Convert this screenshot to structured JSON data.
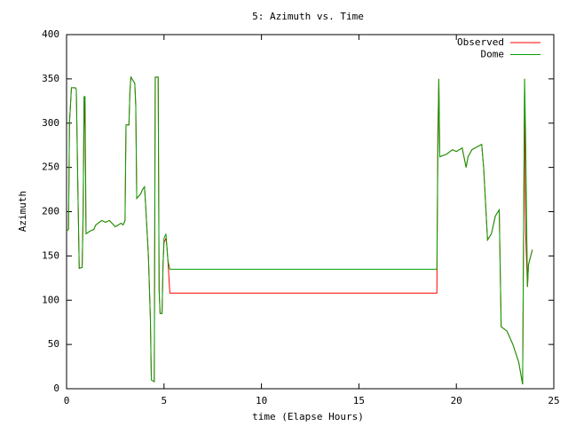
{
  "chart_data": {
    "type": "line",
    "title": "5: Azimuth vs. Time",
    "x_label": "time (Elapse Hours)",
    "y_label": "Azimuth",
    "x": [
      0,
      0.1,
      0.15,
      0.25,
      0.45,
      0.5,
      0.6,
      0.65,
      0.8,
      0.85,
      0.9,
      0.95,
      1.0,
      1.2,
      1.4,
      1.5,
      1.8,
      2.0,
      2.2,
      2.5,
      2.8,
      2.9,
      3.0,
      3.05,
      3.2,
      3.25,
      3.3,
      3.5,
      3.55,
      3.6,
      3.8,
      3.9,
      4.0,
      4.05,
      4.2,
      4.3,
      4.35,
      4.5,
      4.55,
      4.7,
      4.75,
      4.8,
      4.9,
      4.95,
      5.0,
      5.1,
      5.15,
      5.2,
      5.3,
      19.0,
      19.05,
      19.1,
      19.15,
      19.5,
      19.8,
      20.0,
      20.3,
      20.5,
      20.6,
      20.8,
      21.3,
      21.4,
      21.6,
      21.8,
      22.0,
      22.2,
      22.3,
      22.6,
      22.9,
      23.2,
      23.4,
      23.5,
      23.55,
      23.65,
      23.7,
      23.9
    ],
    "series": [
      {
        "name": "Observed",
        "color": "#ff0000",
        "values": [
          178,
          180,
          300,
          340,
          340,
          338,
          200,
          136,
          137,
          200,
          330,
          290,
          175,
          178,
          180,
          185,
          190,
          188,
          190,
          183,
          187,
          185,
          190,
          298,
          298,
          335,
          352,
          345,
          320,
          215,
          220,
          225,
          228,
          210,
          150,
          80,
          10,
          8,
          352,
          352,
          110,
          85,
          85,
          140,
          165,
          170,
          160,
          145,
          108,
          108,
          290,
          350,
          262,
          265,
          270,
          268,
          272,
          250,
          262,
          270,
          276,
          250,
          168,
          175,
          195,
          202,
          70,
          65,
          50,
          30,
          5,
          350,
          180,
          115,
          140,
          157
        ]
      },
      {
        "name": "Dome",
        "color": "#00a000",
        "values": [
          178,
          180,
          300,
          340,
          340,
          338,
          200,
          136,
          137,
          200,
          330,
          330,
          175,
          178,
          180,
          185,
          190,
          188,
          190,
          183,
          187,
          185,
          190,
          298,
          298,
          335,
          352,
          345,
          320,
          215,
          220,
          225,
          228,
          210,
          150,
          80,
          10,
          8,
          352,
          352,
          110,
          85,
          85,
          140,
          170,
          175,
          160,
          145,
          135,
          135,
          260,
          350,
          262,
          265,
          270,
          268,
          272,
          250,
          262,
          270,
          276,
          250,
          168,
          175,
          195,
          202,
          70,
          65,
          50,
          30,
          5,
          350,
          290,
          115,
          140,
          157
        ]
      }
    ],
    "xlim": [
      0,
      25
    ],
    "xticks": [
      0,
      5,
      10,
      15,
      20,
      25
    ],
    "ylim": [
      0,
      400
    ],
    "yticks": [
      0,
      50,
      100,
      150,
      200,
      250,
      300,
      350,
      400
    ],
    "grid": false,
    "legend": "top-right"
  }
}
